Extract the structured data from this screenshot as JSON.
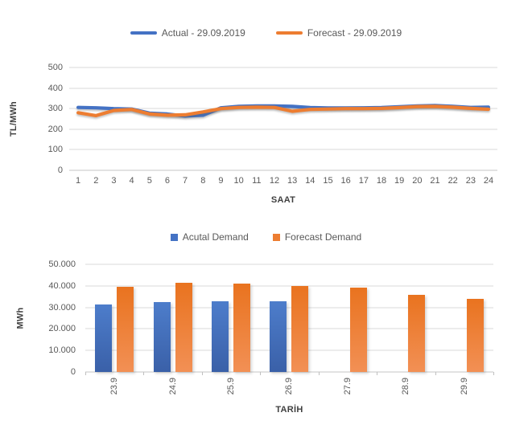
{
  "chart_data": [
    {
      "id": "price-line-chart",
      "type": "line",
      "legend_position": "top",
      "xlabel": "SAAT",
      "ylabel": "TL/MWh",
      "ylim": [
        0,
        500
      ],
      "y_ticks": [
        "0",
        "100",
        "200",
        "300",
        "400",
        "500"
      ],
      "grid": true,
      "x": [
        "1",
        "2",
        "3",
        "4",
        "5",
        "6",
        "7",
        "8",
        "9",
        "10",
        "11",
        "12",
        "13",
        "14",
        "15",
        "16",
        "17",
        "18",
        "19",
        "20",
        "21",
        "22",
        "23",
        "24"
      ],
      "series": [
        {
          "name": "Actual - 29.09.2019",
          "color": "#4472C4",
          "values": [
            306,
            304,
            300,
            298,
            278,
            274,
            264,
            268,
            304,
            311,
            313,
            313,
            311,
            305,
            303,
            303,
            304,
            305,
            309,
            313,
            315,
            311,
            306,
            307
          ]
        },
        {
          "name": "Forecast - 29.09.2019",
          "color": "#ED7D31",
          "values": [
            280,
            266,
            291,
            296,
            274,
            268,
            270,
            284,
            300,
            306,
            307,
            306,
            287,
            296,
            298,
            300,
            300,
            301,
            305,
            310,
            311,
            307,
            301,
            297
          ]
        }
      ]
    },
    {
      "id": "demand-bar-chart",
      "type": "bar",
      "legend_position": "top",
      "xlabel": "TARİH",
      "ylabel": "MWh",
      "ylim": [
        0,
        50000
      ],
      "y_ticks": [
        "0",
        "10.000",
        "20.000",
        "30.000",
        "40.000",
        "50.000"
      ],
      "grid": true,
      "categories": [
        "23.9",
        "24.9",
        "25.9",
        "26.9",
        "27.9",
        "28.9",
        "29.9"
      ],
      "series": [
        {
          "name": "Acutal Demand",
          "color": "#4472C4",
          "values": [
            31400,
            32300,
            32700,
            32800,
            null,
            null,
            null
          ]
        },
        {
          "name": "Forecast Demand",
          "color": "#ED7D31",
          "values": [
            39700,
            41300,
            41100,
            39800,
            39000,
            35800,
            34000
          ]
        }
      ]
    }
  ]
}
